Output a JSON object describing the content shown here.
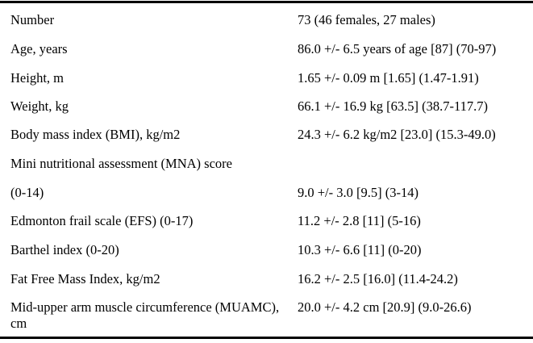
{
  "table": {
    "rows": [
      {
        "label": "Number",
        "value": "73 (46 females, 27 males)"
      },
      {
        "label": "Age, years",
        "value": "86.0 +/- 6.5 years of age [87] (70-97)"
      },
      {
        "label": "Height, m",
        "value": "1.65 +/- 0.09 m [1.65] (1.47-1.91)"
      },
      {
        "label": "Weight, kg",
        "value": "66.1 +/- 16.9 kg [63.5] (38.7-117.7)"
      },
      {
        "label": "Body mass index (BMI), kg/m2",
        "value": "24.3 +/- 6.2 kg/m2 [23.0] (15.3-49.0)"
      },
      {
        "label": "Mini nutritional assessment (MNA) score",
        "value": ""
      },
      {
        "label": "(0-14)",
        "value": "9.0 +/- 3.0 [9.5] (3-14)"
      },
      {
        "label": "Edmonton frail scale (EFS) (0-17)",
        "value": "11.2 +/- 2.8 [11] (5-16)"
      },
      {
        "label": "Barthel index (0-20)",
        "value": "10.3 +/- 6.6 [11] (0-20)"
      },
      {
        "label": "Fat Free Mass Index, kg/m2",
        "value": "16.2 +/- 2.5 [16.0] (11.4-24.2)"
      },
      {
        "label": "Mid-upper arm muscle circumference (MUAMC), cm",
        "value": "20.0 +/- 4.2 cm [20.9] (9.0-26.6)"
      }
    ]
  }
}
